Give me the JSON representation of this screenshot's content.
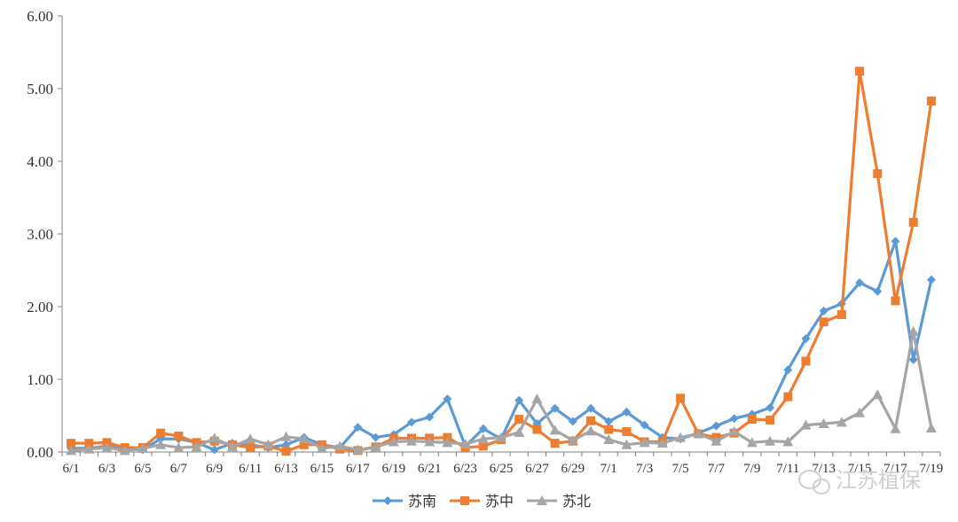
{
  "chart_data": {
    "type": "line",
    "title": "",
    "xlabel": "",
    "ylabel": "",
    "ylim": [
      0,
      6
    ],
    "yticks": [
      "0.00",
      "1.00",
      "2.00",
      "3.00",
      "4.00",
      "5.00",
      "6.00"
    ],
    "xtick_labels": [
      "6/1",
      "6/3",
      "6/5",
      "6/7",
      "6/9",
      "6/11",
      "6/13",
      "6/15",
      "6/17",
      "6/19",
      "6/21",
      "6/23",
      "6/25",
      "6/27",
      "6/29",
      "7/1",
      "7/3",
      "7/5",
      "7/7",
      "7/9",
      "7/11",
      "7/13",
      "7/15",
      "7/17",
      "7/19"
    ],
    "categories": [
      "6/1",
      "6/2",
      "6/3",
      "6/4",
      "6/5",
      "6/6",
      "6/7",
      "6/8",
      "6/9",
      "6/10",
      "6/11",
      "6/12",
      "6/13",
      "6/14",
      "6/15",
      "6/16",
      "6/17",
      "6/18",
      "6/19",
      "6/20",
      "6/21",
      "6/22",
      "6/23",
      "6/24",
      "6/25",
      "6/26",
      "6/27",
      "6/28",
      "6/29",
      "6/30",
      "7/1",
      "7/2",
      "7/3",
      "7/4",
      "7/5",
      "7/6",
      "7/7",
      "7/8",
      "7/9",
      "7/10",
      "7/11",
      "7/12",
      "7/13",
      "7/14",
      "7/15",
      "7/16",
      "7/17",
      "7/18",
      "7/19"
    ],
    "grid": false,
    "legend_position": "bottom",
    "series": [
      {
        "name": "苏南",
        "color": "#5b9bd5",
        "marker": "diamond",
        "values": [
          0.05,
          0.05,
          0.08,
          0.04,
          0.03,
          0.18,
          0.18,
          0.13,
          0.03,
          0.12,
          0.1,
          0.06,
          0.1,
          0.2,
          0.1,
          0.06,
          0.34,
          0.2,
          0.24,
          0.41,
          0.48,
          0.73,
          0.08,
          0.32,
          0.18,
          0.71,
          0.39,
          0.6,
          0.42,
          0.6,
          0.42,
          0.55,
          0.37,
          0.2,
          0.18,
          0.26,
          0.36,
          0.46,
          0.52,
          0.61,
          1.13,
          1.56,
          1.94,
          2.04,
          2.33,
          2.21,
          2.9,
          1.27,
          2.37
        ]
      },
      {
        "name": "苏中",
        "color": "#ed7d31",
        "marker": "square",
        "values": [
          0.12,
          0.12,
          0.13,
          0.06,
          0.06,
          0.26,
          0.22,
          0.13,
          0.15,
          0.1,
          0.06,
          0.08,
          0.01,
          0.1,
          0.1,
          0.04,
          0.02,
          0.07,
          0.19,
          0.19,
          0.19,
          0.2,
          0.06,
          0.08,
          0.17,
          0.45,
          0.31,
          0.12,
          0.15,
          0.43,
          0.31,
          0.28,
          0.14,
          0.14,
          0.74,
          0.25,
          0.2,
          0.26,
          0.45,
          0.44,
          0.76,
          1.25,
          1.79,
          1.89,
          5.24,
          3.83,
          2.08,
          3.16,
          4.83
        ]
      },
      {
        "name": "苏北",
        "color": "#a5a5a5",
        "marker": "triangle",
        "values": [
          0.02,
          0.04,
          0.06,
          0.02,
          0.05,
          0.1,
          0.06,
          0.07,
          0.19,
          0.07,
          0.18,
          0.1,
          0.21,
          0.18,
          0.05,
          0.08,
          0.03,
          0.07,
          0.14,
          0.15,
          0.14,
          0.13,
          0.11,
          0.18,
          0.2,
          0.27,
          0.73,
          0.3,
          0.16,
          0.29,
          0.17,
          0.1,
          0.13,
          0.12,
          0.2,
          0.25,
          0.15,
          0.28,
          0.13,
          0.15,
          0.14,
          0.37,
          0.39,
          0.41,
          0.54,
          0.79,
          0.32,
          1.66,
          0.33
        ]
      }
    ]
  },
  "watermark": {
    "icon": "wechat-icon",
    "text": "江苏植保"
  }
}
